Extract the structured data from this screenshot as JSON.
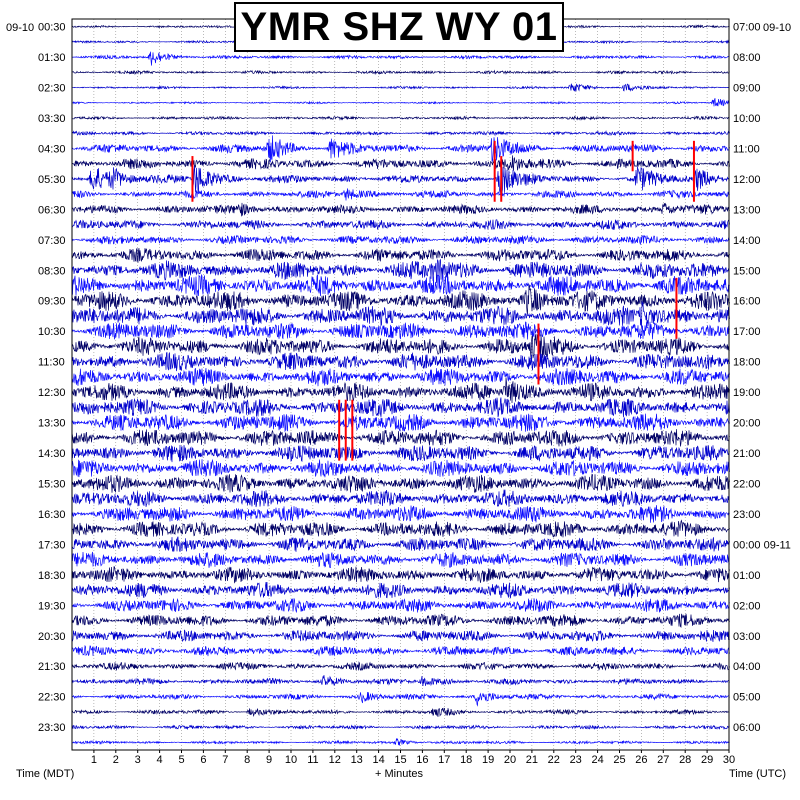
{
  "chart_data": {
    "type": "line",
    "title": "YMR SHZ WY 01",
    "left_date": "09-10",
    "right_date": "09-10",
    "next_date": "09-11",
    "left_axis_title": "Time (MDT)",
    "xlabel": "+ Minutes",
    "right_axis_title": "Time (UTC)",
    "x_ticks": [
      "1",
      "2",
      "3",
      "4",
      "5",
      "6",
      "7",
      "8",
      "9",
      "10",
      "11",
      "12",
      "13",
      "14",
      "15",
      "16",
      "17",
      "18",
      "19",
      "20",
      "21",
      "22",
      "23",
      "24",
      "25",
      "26",
      "27",
      "28",
      "29",
      "30"
    ],
    "xlim": [
      0,
      30
    ],
    "left_labels": [
      "00:30",
      "01:30",
      "02:30",
      "03:30",
      "04:30",
      "05:30",
      "06:30",
      "07:30",
      "08:30",
      "09:30",
      "10:30",
      "11:30",
      "12:30",
      "13:30",
      "14:30",
      "15:30",
      "16:30",
      "17:30",
      "18:30",
      "19:30",
      "20:30",
      "21:30",
      "22:30",
      "23:30"
    ],
    "right_labels": [
      "07:00",
      "08:00",
      "09:00",
      "10:00",
      "11:00",
      "12:00",
      "13:00",
      "14:00",
      "15:00",
      "16:00",
      "17:00",
      "18:00",
      "19:00",
      "20:00",
      "21:00",
      "22:00",
      "23:00",
      "00:00",
      "01:00",
      "02:00",
      "03:00",
      "04:00",
      "05:00",
      "06:00"
    ],
    "trace_rows": 48,
    "row_amplitude": [
      0.15,
      0.15,
      0.22,
      0.2,
      0.15,
      0.12,
      0.2,
      0.25,
      0.6,
      0.7,
      0.55,
      0.5,
      0.6,
      0.65,
      0.6,
      0.9,
      1.2,
      1.3,
      1.3,
      1.3,
      1.2,
      1.2,
      1.2,
      1.15,
      1.15,
      1.2,
      1.2,
      1.2,
      1.15,
      1.15,
      1.15,
      1.1,
      1.1,
      1.1,
      1.0,
      1.0,
      1.0,
      1.0,
      0.9,
      0.85,
      0.8,
      0.65,
      0.5,
      0.4,
      0.35,
      0.3,
      0.25,
      0.2
    ],
    "events": [
      {
        "row": 1,
        "minute": 9.8,
        "amp": 4
      },
      {
        "row": 4,
        "minute": 22.8,
        "amp": 5
      },
      {
        "row": 4,
        "minute": 25.2,
        "amp": 4
      },
      {
        "row": 2,
        "minute": 3.6,
        "amp": 8
      },
      {
        "row": 5,
        "minute": 29.3,
        "amp": 5
      },
      {
        "row": 8,
        "minute": 9.0,
        "amp": 12
      },
      {
        "row": 8,
        "minute": 11.8,
        "amp": 10
      },
      {
        "row": 8,
        "minute": 19.2,
        "amp": 14
      },
      {
        "row": 9,
        "minute": 20.0,
        "amp": 6
      },
      {
        "row": 10,
        "minute": 0.9,
        "amp": 14
      },
      {
        "row": 10,
        "minute": 1.8,
        "amp": 8
      },
      {
        "row": 10,
        "minute": 5.6,
        "amp": 18
      },
      {
        "row": 10,
        "minute": 19.5,
        "amp": 18
      },
      {
        "row": 10,
        "minute": 25.8,
        "amp": 12
      },
      {
        "row": 10,
        "minute": 28.5,
        "amp": 10
      },
      {
        "row": 11,
        "minute": 12.5,
        "amp": 6
      },
      {
        "row": 12,
        "minute": 7.6,
        "amp": 6
      },
      {
        "row": 12,
        "minute": 27.0,
        "amp": 6
      },
      {
        "row": 16,
        "minute": 16.5,
        "amp": 10
      },
      {
        "row": 18,
        "minute": 20.8,
        "amp": 12
      },
      {
        "row": 19,
        "minute": 26.0,
        "amp": 12
      },
      {
        "row": 21,
        "minute": 21.0,
        "amp": 10
      },
      {
        "row": 24,
        "minute": 19.8,
        "amp": 12
      },
      {
        "row": 43,
        "minute": 11.5,
        "amp": 5
      },
      {
        "row": 43,
        "minute": 16.0,
        "amp": 5
      },
      {
        "row": 44,
        "minute": 13.2,
        "amp": 5
      },
      {
        "row": 44,
        "minute": 18.5,
        "amp": 8
      },
      {
        "row": 45,
        "minute": 8.1,
        "amp": 4
      },
      {
        "row": 45,
        "minute": 16.5,
        "amp": 4
      },
      {
        "row": 47,
        "minute": 14.8,
        "amp": 3
      }
    ],
    "clip_marks": [
      {
        "row": 9,
        "minute": 5.5,
        "span": 3
      },
      {
        "row": 8,
        "minute": 19.3,
        "span": 4
      },
      {
        "row": 9,
        "minute": 19.6,
        "span": 3
      },
      {
        "row": 8,
        "minute": 25.6,
        "span": 2
      },
      {
        "row": 8,
        "minute": 28.4,
        "span": 4
      },
      {
        "row": 17,
        "minute": 27.6,
        "span": 4
      },
      {
        "row": 20,
        "minute": 21.3,
        "span": 4
      },
      {
        "row": 25,
        "minute": 12.2,
        "span": 4
      },
      {
        "row": 25,
        "minute": 12.5,
        "span": 4
      },
      {
        "row": 25,
        "minute": 12.8,
        "span": 4
      }
    ],
    "colors": {
      "trace_a": "#000066",
      "trace_b": "#0000cc",
      "trace_c": "#0d0dff",
      "clip": "#ff0000",
      "grid": "#777777",
      "frame": "#000000"
    }
  }
}
